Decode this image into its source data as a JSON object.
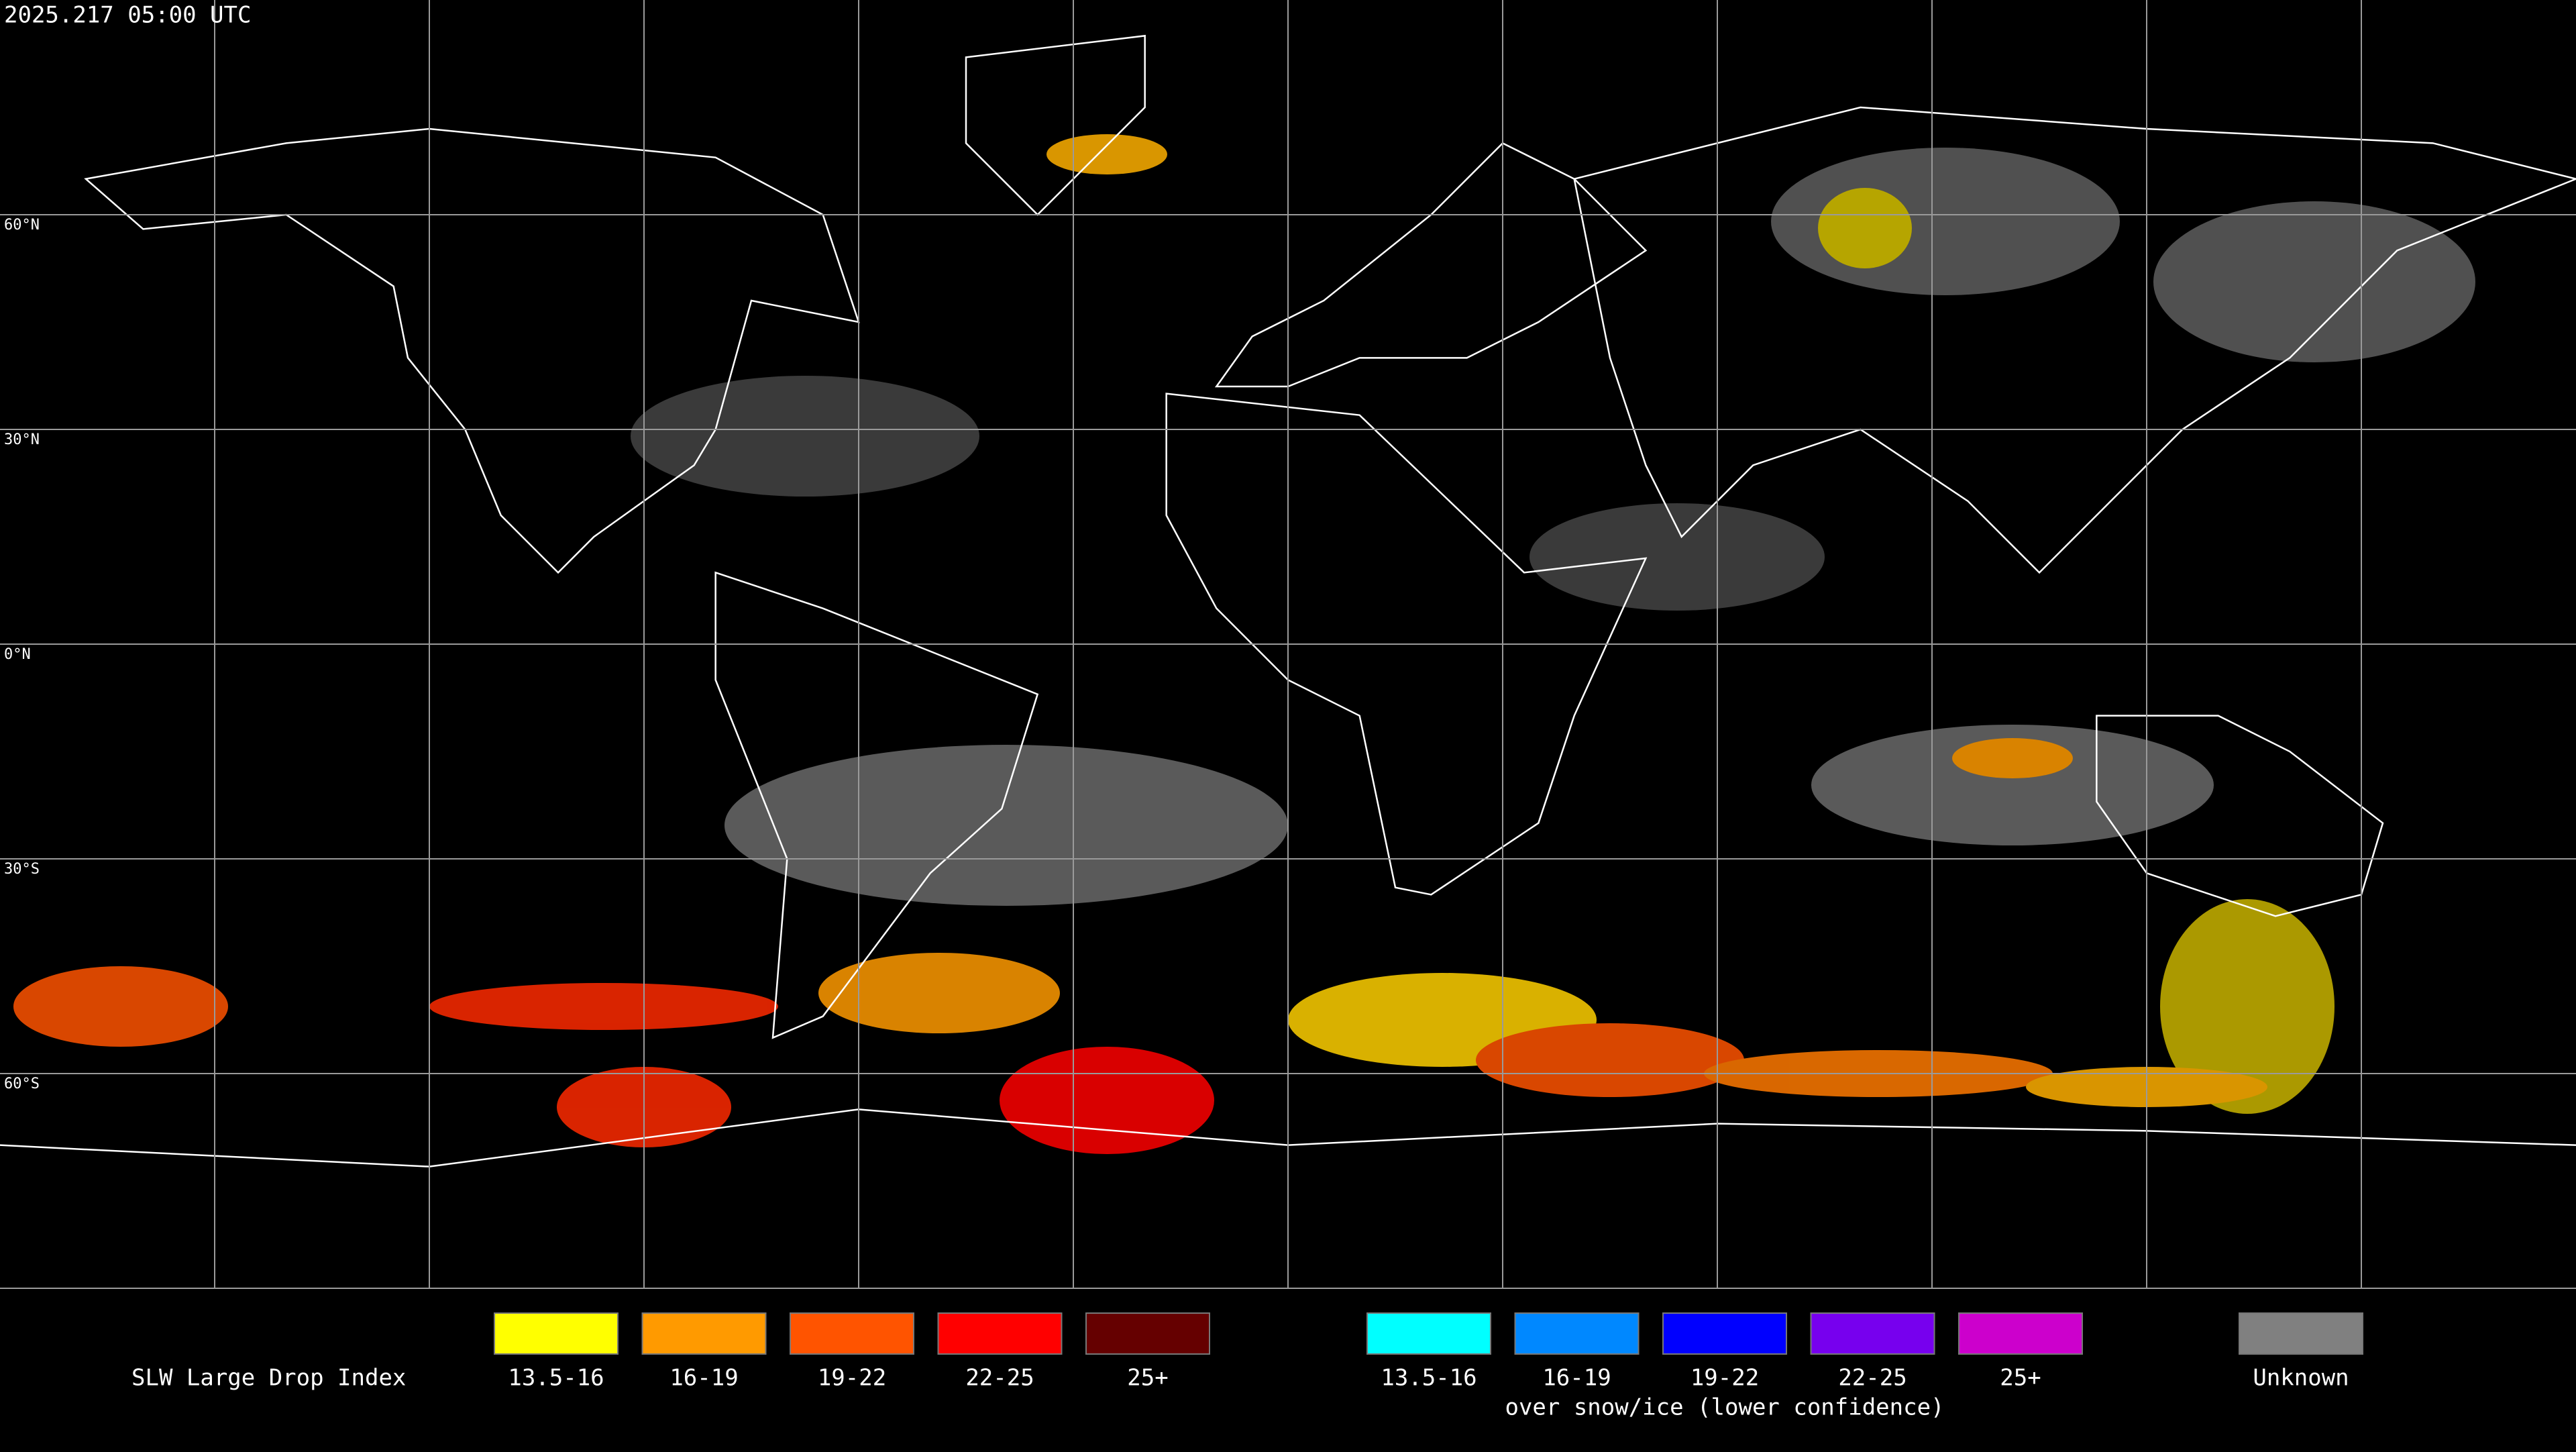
{
  "header": {
    "timestamp": "2025.217 05:00 UTC"
  },
  "map": {
    "lat_labels": [
      "60°N",
      "30°N",
      "0°N",
      "30°S",
      "60°S"
    ]
  },
  "legend": {
    "title": "SLW Large Drop Index",
    "groups": [
      {
        "items": [
          {
            "label": "13.5-16",
            "color": "#ffff00"
          },
          {
            "label": "16-19",
            "color": "#ff9a00"
          },
          {
            "label": "19-22",
            "color": "#ff5400"
          },
          {
            "label": "22-25",
            "color": "#ff0000"
          },
          {
            "label": "25+",
            "color": "#650000"
          }
        ]
      },
      {
        "items": [
          {
            "label": "13.5-16",
            "color": "#00ffff"
          },
          {
            "label": "16-19",
            "color": "#0088ff"
          },
          {
            "label": "19-22",
            "color": "#0000ff"
          },
          {
            "label": "22-25",
            "color": "#7700ee"
          },
          {
            "label": "25+",
            "color": "#cc00cc"
          }
        ]
      }
    ],
    "snow_note": "over snow/ice (lower confidence)",
    "unknown": {
      "label": "Unknown",
      "color": "#808080"
    }
  }
}
